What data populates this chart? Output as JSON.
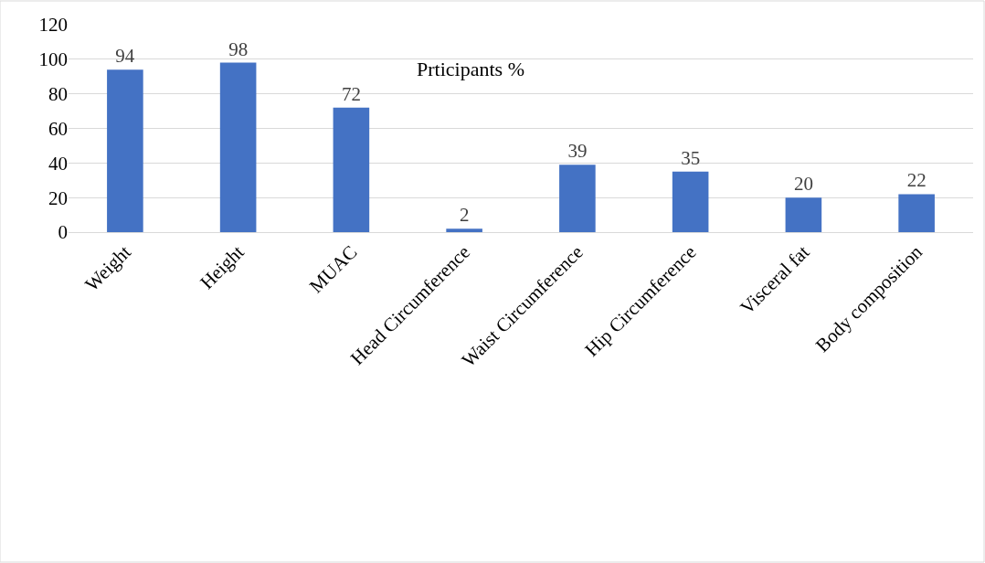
{
  "chart_data": {
    "type": "bar",
    "title": "Prticipants %",
    "categories": [
      "Weight",
      "Height",
      "MUAC",
      "Head Circumference",
      "Waist Circumference",
      "Hip Circumference",
      "Visceral fat",
      "Body composition"
    ],
    "values": [
      94,
      98,
      72,
      2,
      39,
      35,
      20,
      22
    ],
    "color": "#4472c4",
    "ylim": [
      0,
      120
    ],
    "yticks": [
      0,
      20,
      40,
      60,
      80,
      100,
      120
    ],
    "grid": "y",
    "data_labels": true,
    "legend": false
  }
}
